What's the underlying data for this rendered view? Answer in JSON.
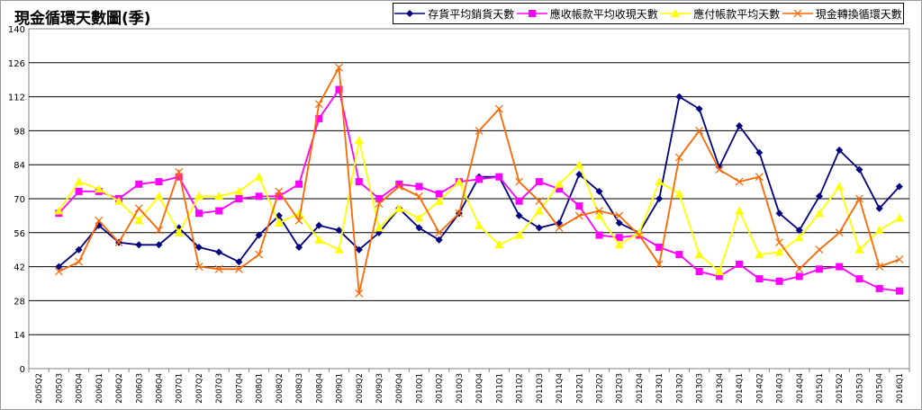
{
  "chart_data": {
    "type": "line",
    "title": "現金循環天數圖(季)",
    "ylim": [
      0,
      140
    ],
    "yticks": [
      0,
      14,
      28,
      42,
      56,
      70,
      84,
      98,
      112,
      126,
      140
    ],
    "grid": true,
    "legend_position": "top-right",
    "x": [
      "2005Q2",
      "2005Q3",
      "2005Q4",
      "2006Q1",
      "2006Q2",
      "2006Q3",
      "2006Q4",
      "2007Q1",
      "2007Q2",
      "2007Q3",
      "2007Q4",
      "2008Q1",
      "2008Q2",
      "2008Q3",
      "2008Q4",
      "2009Q1",
      "2009Q2",
      "2009Q3",
      "2009Q4",
      "2010Q1",
      "2010Q2",
      "2010Q3",
      "2010Q4",
      "2011Q1",
      "2011Q2",
      "2011Q3",
      "2011Q4",
      "2012Q1",
      "2012Q2",
      "2012Q3",
      "2012Q4",
      "2013Q1",
      "2013Q2",
      "2013Q3",
      "2013Q4",
      "2014Q1",
      "2014Q2",
      "2014Q3",
      "2014Q4",
      "2015Q1",
      "2015Q2",
      "2015Q3",
      "2015Q4",
      "2016Q1"
    ],
    "series": [
      {
        "name": "存貨平均銷貨天數",
        "color": "#000080",
        "marker": "diamond",
        "values": [
          null,
          42,
          49,
          59,
          52,
          51,
          51,
          58,
          50,
          48,
          44,
          55,
          63,
          50,
          59,
          57,
          49,
          56,
          66,
          58,
          53,
          64,
          79,
          79,
          63,
          58,
          60,
          80,
          73,
          60,
          56,
          70,
          112,
          107,
          83,
          100,
          89,
          64,
          57,
          71,
          90,
          82,
          66,
          75
        ]
      },
      {
        "name": "應收帳款平均收現天數",
        "color": "#ff00ff",
        "marker": "square",
        "values": [
          null,
          64,
          73,
          73,
          70,
          76,
          77,
          79,
          64,
          65,
          70,
          71,
          71,
          76,
          103,
          115,
          77,
          70,
          76,
          75,
          72,
          77,
          78,
          79,
          69,
          77,
          74,
          67,
          55,
          54,
          55,
          50,
          47,
          40,
          38,
          43,
          37,
          36,
          38,
          41,
          42,
          37,
          33,
          32
        ]
      },
      {
        "name": "應付帳款平均天數",
        "color": "#ffff00",
        "marker": "triangle",
        "values": [
          null,
          65,
          77,
          74,
          69,
          61,
          71,
          56,
          71,
          71,
          73,
          79,
          60,
          64,
          53,
          49,
          94,
          58,
          66,
          62,
          69,
          77,
          59,
          51,
          55,
          65,
          76,
          84,
          63,
          51,
          56,
          77,
          72,
          47,
          40,
          65,
          47,
          48,
          54,
          64,
          75,
          49,
          57,
          62
        ]
      },
      {
        "name": "現金轉換循環天數",
        "color": "#ff6600",
        "marker": "cross",
        "values": [
          null,
          40,
          44,
          61,
          52,
          66,
          57,
          81,
          42,
          41,
          41,
          47,
          73,
          61,
          109,
          124,
          31,
          68,
          75,
          71,
          56,
          64,
          98,
          107,
          77,
          69,
          58,
          63,
          65,
          63,
          55,
          43,
          87,
          98,
          82,
          77,
          79,
          52,
          41,
          49,
          56,
          70,
          42,
          45
        ]
      }
    ]
  }
}
